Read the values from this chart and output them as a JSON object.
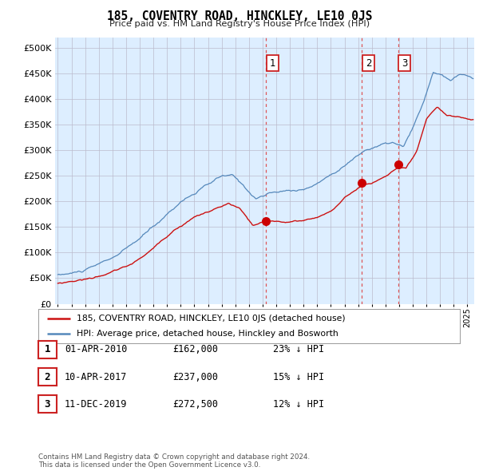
{
  "title": "185, COVENTRY ROAD, HINCKLEY, LE10 0JS",
  "subtitle": "Price paid vs. HM Land Registry's House Price Index (HPI)",
  "yticks": [
    0,
    50000,
    100000,
    150000,
    200000,
    250000,
    300000,
    350000,
    400000,
    450000,
    500000
  ],
  "ytick_labels": [
    "£0",
    "£50K",
    "£100K",
    "£150K",
    "£200K",
    "£250K",
    "£300K",
    "£350K",
    "£400K",
    "£450K",
    "£500K"
  ],
  "xlim_start": 1994.8,
  "xlim_end": 2025.5,
  "ylim": [
    0,
    520000
  ],
  "sale_dates": [
    2010.25,
    2017.28,
    2019.92
  ],
  "sale_prices": [
    162000,
    237000,
    272500
  ],
  "sale_labels": [
    "1",
    "2",
    "3"
  ],
  "dashed_line_color": "#dd4444",
  "dot_color": "#cc0000",
  "red_line_color": "#cc1111",
  "blue_line_color": "#5588bb",
  "chart_bg_color": "#ddeeff",
  "legend_red_label": "185, COVENTRY ROAD, HINCKLEY, LE10 0JS (detached house)",
  "legend_blue_label": "HPI: Average price, detached house, Hinckley and Bosworth",
  "table_rows": [
    [
      "1",
      "01-APR-2010",
      "£162,000",
      "23% ↓ HPI"
    ],
    [
      "2",
      "10-APR-2017",
      "£237,000",
      "15% ↓ HPI"
    ],
    [
      "3",
      "11-DEC-2019",
      "£272,500",
      "12% ↓ HPI"
    ]
  ],
  "footnote": "Contains HM Land Registry data © Crown copyright and database right 2024.\nThis data is licensed under the Open Government Licence v3.0.",
  "background_color": "#ffffff",
  "grid_color": "#bbbbcc"
}
